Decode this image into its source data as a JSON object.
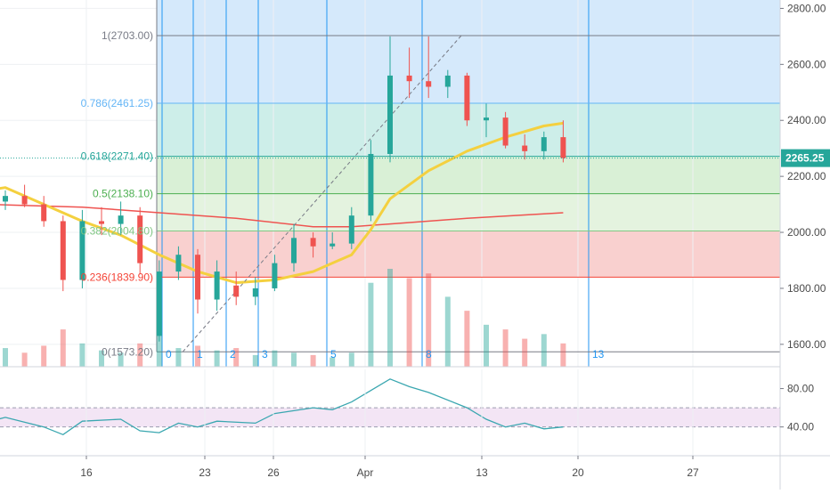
{
  "chart_data": {
    "type": "candlestick",
    "x_tick_labels": [
      "16",
      "23",
      "26",
      "Apr",
      "13",
      "20",
      "27"
    ],
    "x_ticks_day_index": [
      0,
      7,
      10,
      16,
      28,
      35,
      42
    ],
    "price_axis": {
      "ylim": [
        1520,
        2830
      ],
      "tick_labels": [
        "2800.00",
        "2600.00",
        "2400.00",
        "2200.00",
        "2000.00",
        "1800.00",
        "1600.00"
      ],
      "tick_values": [
        2800,
        2600,
        2400,
        2200,
        2000,
        1800,
        1600
      ]
    },
    "last_price": {
      "label": "2265.25",
      "value": 2265.25,
      "color": "#ef5350"
    },
    "fibonacci": {
      "levels": [
        {
          "label": "1(2703.00)",
          "value": 2703.0,
          "line_color": "#787b86",
          "fill": "#dddddd",
          "text_color": "#787b86"
        },
        {
          "label": "0.786(2461.25)",
          "value": 2461.25,
          "line_color": "#64b5f6",
          "fill": "#d5e9fb",
          "text_color": "#64b5f6"
        },
        {
          "label": "0.618(2271.40)",
          "value": 2271.4,
          "line_color": "#26a69a",
          "fill": "#cdeee9",
          "text_color": "#26a69a"
        },
        {
          "label": "0.5(2138.10)",
          "value": 2138.1,
          "line_color": "#4caf50",
          "fill": "#d9f0d6",
          "text_color": "#4caf50"
        },
        {
          "label": "0.382(2004.80)",
          "value": 2004.8,
          "line_color": "#81c784",
          "fill": "#e4f3df",
          "text_color": "#81c784"
        },
        {
          "label": "0.236(1839.90)",
          "value": 1839.9,
          "line_color": "#f44336",
          "fill": "#f9d0cf",
          "text_color": "#f44336"
        },
        {
          "label": "0(1573.20)",
          "value": 1573.2,
          "line_color": "#787b86",
          "fill": "#ffffff",
          "text_color": "#787b86"
        }
      ],
      "top_zone_fill": "#d5e9fb"
    },
    "fib_time_zones": {
      "labels": [
        "0",
        "1",
        "2",
        "3",
        "5",
        "8",
        "13"
      ],
      "day_index": [
        12,
        13,
        14,
        15,
        17,
        20,
        25
      ],
      "color": "#2196f3"
    },
    "trend_line": {
      "from": [
        12,
        1573.2
      ],
      "to": [
        20,
        2703.0
      ],
      "style": "dashed"
    },
    "candles": [
      [
        0,
        2110,
        2150,
        2080,
        2130
      ],
      [
        1,
        2130,
        2170,
        2090,
        2100
      ],
      [
        2,
        2100,
        2130,
        2020,
        2040
      ],
      [
        3,
        2040,
        2060,
        1790,
        1830
      ],
      [
        4,
        1830,
        2080,
        1800,
        2040
      ],
      [
        5,
        2040,
        2090,
        1990,
        2030
      ],
      [
        6,
        2030,
        2110,
        1990,
        2060
      ],
      [
        7,
        2060,
        2090,
        1850,
        1890
      ],
      [
        8,
        1630,
        1900,
        1610,
        1860
      ],
      [
        9,
        1860,
        1950,
        1830,
        1920
      ],
      [
        10,
        1920,
        1940,
        1710,
        1760
      ],
      [
        11,
        1760,
        1900,
        1720,
        1860
      ],
      [
        12,
        1810,
        1860,
        1740,
        1770
      ],
      [
        13,
        1770,
        1840,
        1740,
        1800
      ],
      [
        14,
        1800,
        1920,
        1790,
        1890
      ],
      [
        15,
        1890,
        2030,
        1860,
        1980
      ],
      [
        16,
        1980,
        2000,
        1910,
        1950
      ],
      [
        17,
        1950,
        2000,
        1940,
        1960
      ],
      [
        18,
        1960,
        2090,
        1940,
        2060
      ],
      [
        19,
        2060,
        2330,
        2040,
        2280
      ],
      [
        20,
        2280,
        2700,
        2250,
        2560
      ],
      [
        21,
        2560,
        2660,
        2480,
        2540
      ],
      [
        22,
        2540,
        2700,
        2480,
        2520
      ],
      [
        23,
        2520,
        2580,
        2480,
        2560
      ],
      [
        24,
        2560,
        2570,
        2380,
        2400
      ],
      [
        25,
        2400,
        2460,
        2340,
        2410
      ],
      [
        26,
        2410,
        2430,
        2300,
        2310
      ],
      [
        27,
        2310,
        2350,
        2260,
        2290
      ],
      [
        28,
        2290,
        2360,
        2260,
        2340
      ],
      [
        29,
        2340,
        2400,
        2250,
        2265.25
      ]
    ],
    "volume": [
      [
        0,
        40,
        true
      ],
      [
        1,
        30,
        false
      ],
      [
        2,
        45,
        false
      ],
      [
        3,
        80,
        false
      ],
      [
        4,
        50,
        true
      ],
      [
        5,
        35,
        true
      ],
      [
        6,
        30,
        true
      ],
      [
        7,
        50,
        false
      ],
      [
        8,
        120,
        true
      ],
      [
        9,
        40,
        true
      ],
      [
        10,
        45,
        false
      ],
      [
        11,
        35,
        true
      ],
      [
        12,
        40,
        false
      ],
      [
        13,
        25,
        true
      ],
      [
        14,
        35,
        true
      ],
      [
        15,
        30,
        true
      ],
      [
        16,
        25,
        false
      ],
      [
        17,
        20,
        true
      ],
      [
        18,
        30,
        true
      ],
      [
        19,
        180,
        true
      ],
      [
        20,
        210,
        true
      ],
      [
        21,
        190,
        false
      ],
      [
        22,
        200,
        false
      ],
      [
        23,
        150,
        true
      ],
      [
        24,
        120,
        false
      ],
      [
        25,
        90,
        true
      ],
      [
        26,
        80,
        false
      ],
      [
        27,
        60,
        false
      ],
      [
        28,
        70,
        true
      ],
      [
        29,
        50,
        false
      ]
    ],
    "ma_yellow": [
      [
        -1,
        2150
      ],
      [
        0,
        2160
      ],
      [
        2,
        2100
      ],
      [
        4,
        2040
      ],
      [
        6,
        1990
      ],
      [
        8,
        1920
      ],
      [
        10,
        1860
      ],
      [
        12,
        1820
      ],
      [
        14,
        1830
      ],
      [
        16,
        1860
      ],
      [
        18,
        1920
      ],
      [
        19,
        2010
      ],
      [
        20,
        2120
      ],
      [
        22,
        2220
      ],
      [
        24,
        2290
      ],
      [
        26,
        2340
      ],
      [
        28,
        2380
      ],
      [
        29,
        2390
      ]
    ],
    "ma_red": [
      [
        -1,
        2100
      ],
      [
        4,
        2090
      ],
      [
        8,
        2070
      ],
      [
        12,
        2050
      ],
      [
        16,
        2020
      ],
      [
        18,
        2020
      ],
      [
        20,
        2030
      ],
      [
        24,
        2050
      ],
      [
        29,
        2070
      ]
    ],
    "rsi": {
      "tick_labels": [
        "80.00",
        "40.00"
      ],
      "tick_values": [
        80,
        40
      ],
      "ylim": [
        10,
        100
      ],
      "band": [
        40,
        60
      ],
      "band_fill": "#f3e5f5",
      "line_color": "#3aa7b0",
      "values": [
        [
          -1,
          45
        ],
        [
          0,
          50
        ],
        [
          2,
          40
        ],
        [
          3,
          32
        ],
        [
          4,
          46
        ],
        [
          6,
          48
        ],
        [
          7,
          36
        ],
        [
          8,
          34
        ],
        [
          9,
          44
        ],
        [
          10,
          40
        ],
        [
          11,
          46
        ],
        [
          13,
          44
        ],
        [
          14,
          54
        ],
        [
          16,
          60
        ],
        [
          17,
          58
        ],
        [
          18,
          66
        ],
        [
          19,
          78
        ],
        [
          20,
          90
        ],
        [
          21,
          82
        ],
        [
          22,
          76
        ],
        [
          24,
          60
        ],
        [
          25,
          48
        ],
        [
          26,
          40
        ],
        [
          27,
          44
        ],
        [
          28,
          38
        ],
        [
          29,
          40
        ]
      ]
    },
    "colors": {
      "up": "#26a69a",
      "down": "#ef5350",
      "ma_yellow": "#f4d03f",
      "ma_red": "#ef5350"
    }
  }
}
